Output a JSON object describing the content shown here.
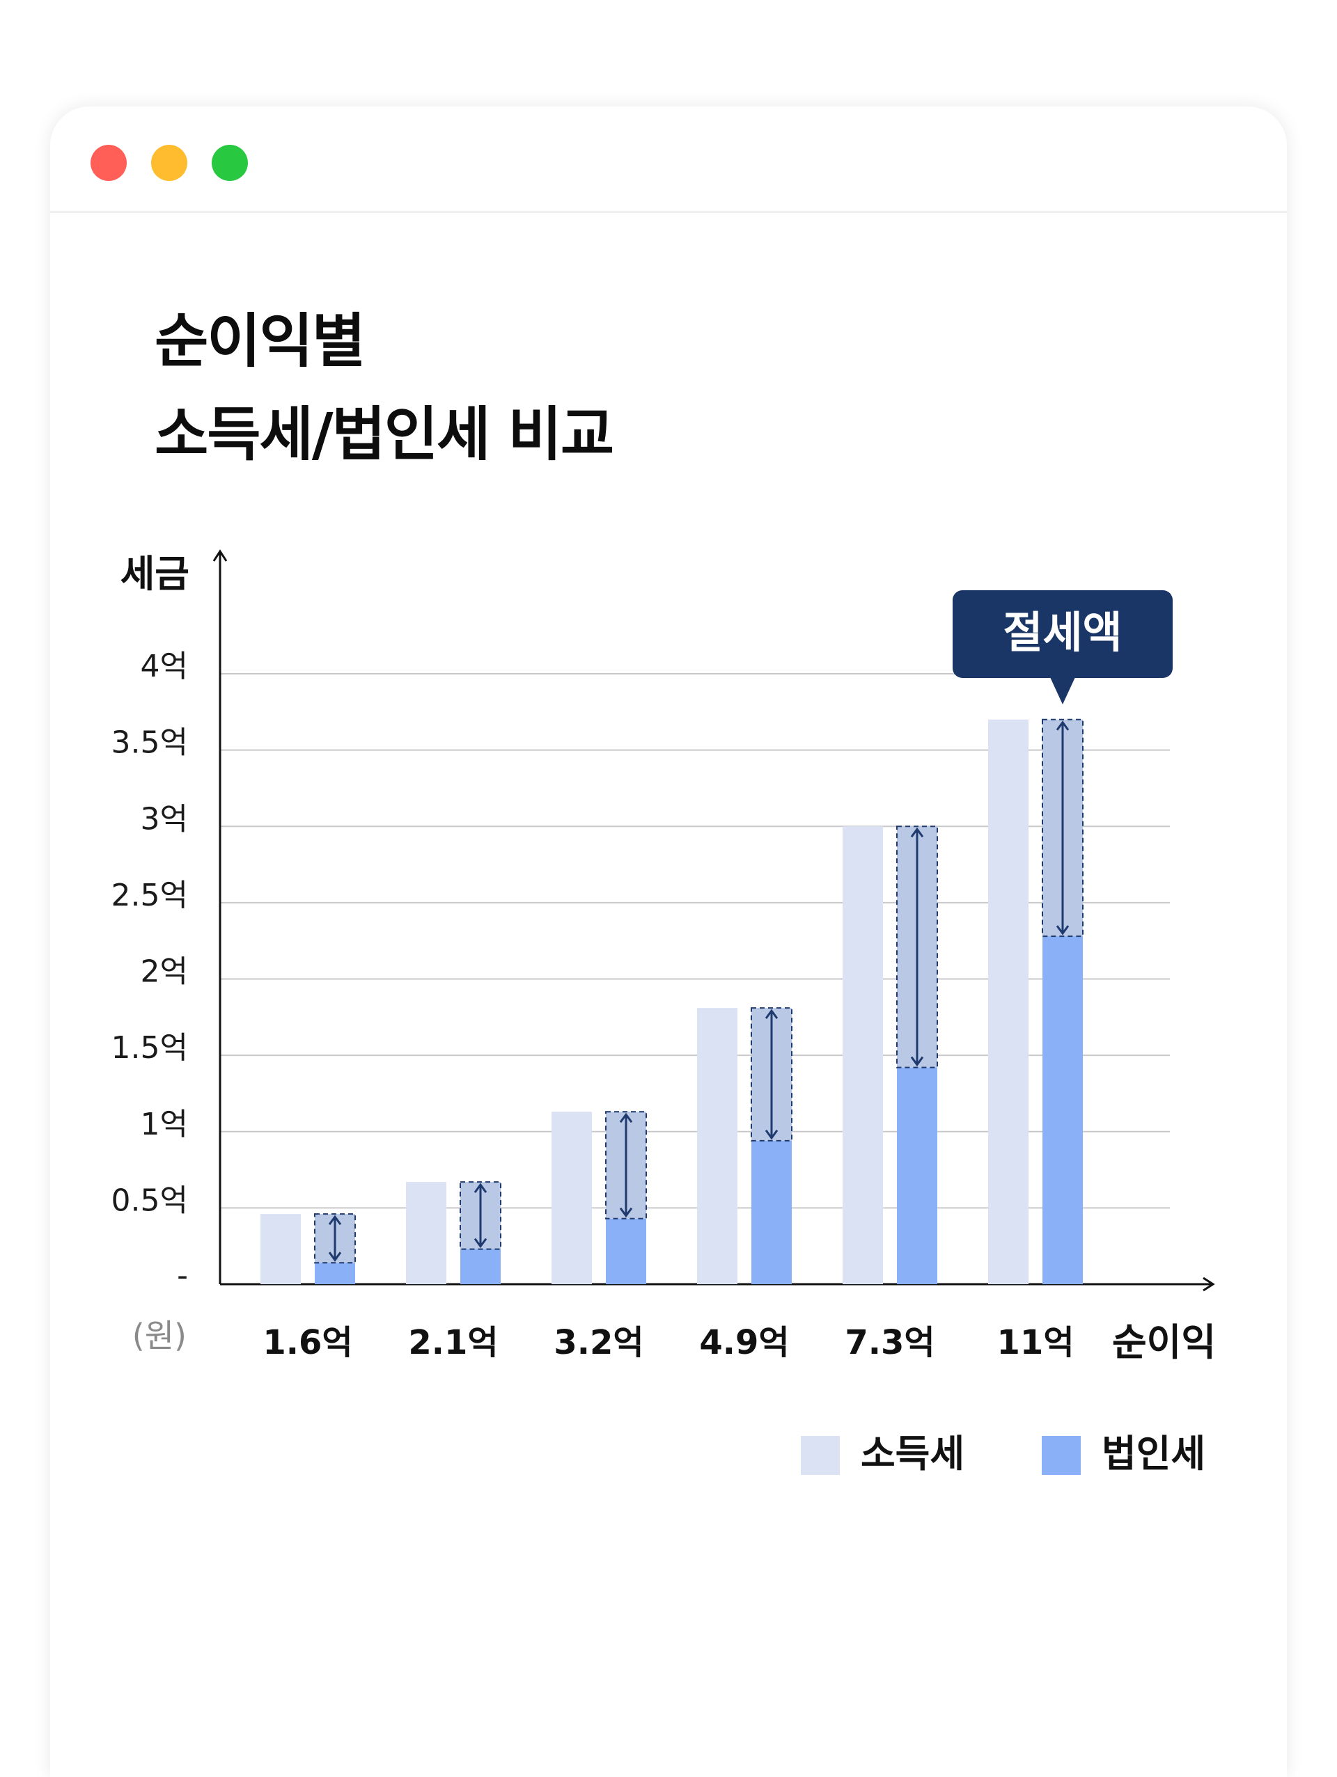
{
  "window": {
    "controls": [
      "close",
      "minimize",
      "maximize"
    ],
    "colors": {
      "close": "#ff5f57",
      "minimize": "#febc2e",
      "maximize": "#28c840"
    }
  },
  "title": {
    "line1": "순이익별",
    "line2": "소득세/법인세 비교"
  },
  "chart_data": {
    "type": "bar",
    "ylabel": "세금",
    "yunit": "(원)",
    "xlabel": "순이익",
    "yticks": [
      {
        "value": 0,
        "label": "-"
      },
      {
        "value": 0.5,
        "label": "0.5억"
      },
      {
        "value": 1,
        "label": "1억"
      },
      {
        "value": 1.5,
        "label": "1.5억"
      },
      {
        "value": 2,
        "label": "2억"
      },
      {
        "value": 2.5,
        "label": "2.5억"
      },
      {
        "value": 3,
        "label": "3억"
      },
      {
        "value": 3.5,
        "label": "3.5억"
      },
      {
        "value": 4,
        "label": "4억"
      }
    ],
    "ylim": [
      0,
      4
    ],
    "grid": true,
    "categories": [
      "1.6억",
      "2.1억",
      "3.2억",
      "4.9억",
      "7.3억",
      "11억"
    ],
    "series": [
      {
        "name": "소득세",
        "color": "#dbe2f3",
        "values": [
          0.46,
          0.67,
          1.13,
          1.81,
          3.0,
          3.7
        ]
      },
      {
        "name": "법인세",
        "color": "#8ab0f7",
        "values": [
          0.14,
          0.23,
          0.43,
          0.94,
          1.42,
          2.28
        ]
      }
    ],
    "savings_color": "#b9c9e5",
    "savings_border": "#1f3a6e",
    "callout": {
      "text": "절세액",
      "category_index": 5,
      "color": "#1a3667"
    },
    "legend": {
      "position": "bottom-right"
    }
  }
}
